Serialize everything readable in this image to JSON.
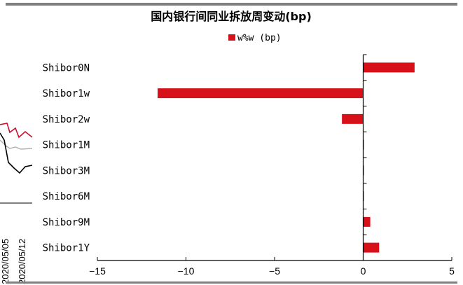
{
  "chart_data": {
    "type": "bar",
    "orientation": "horizontal",
    "title": "国内银行间同业拆放周变动(bp)",
    "legend": {
      "position": "top-center",
      "entries": [
        "w%w (bp)"
      ]
    },
    "categories": [
      "Shibor0N",
      "Shibor1w",
      "Shibor2w",
      "Shibor1M",
      "Shibor3M",
      "Shibor6M",
      "Shibor9M",
      "Shibor1Y"
    ],
    "series": [
      {
        "name": "w%w (bp)",
        "color": "#d7101a",
        "values": [
          2.9,
          -11.6,
          -1.2,
          0.0,
          0.0,
          0.0,
          0.4,
          0.9
        ]
      }
    ],
    "xlim": [
      -15,
      5
    ],
    "xticks": [
      -15,
      -10,
      -5,
      0,
      5
    ],
    "xtick_labels": [
      "−15",
      "−10",
      "−5",
      "0",
      "5"
    ],
    "grid": false
  },
  "background_fragment": {
    "date_labels": [
      "2020/05/05",
      "2020/05/12"
    ],
    "line_colors": [
      "#c8102e",
      "#000000",
      "#999999"
    ]
  },
  "colors": {
    "bar": "#d7101a",
    "axis": "#000000",
    "top_rule": "#7f7f7f",
    "bottom_rule": "#7f7f7f"
  }
}
